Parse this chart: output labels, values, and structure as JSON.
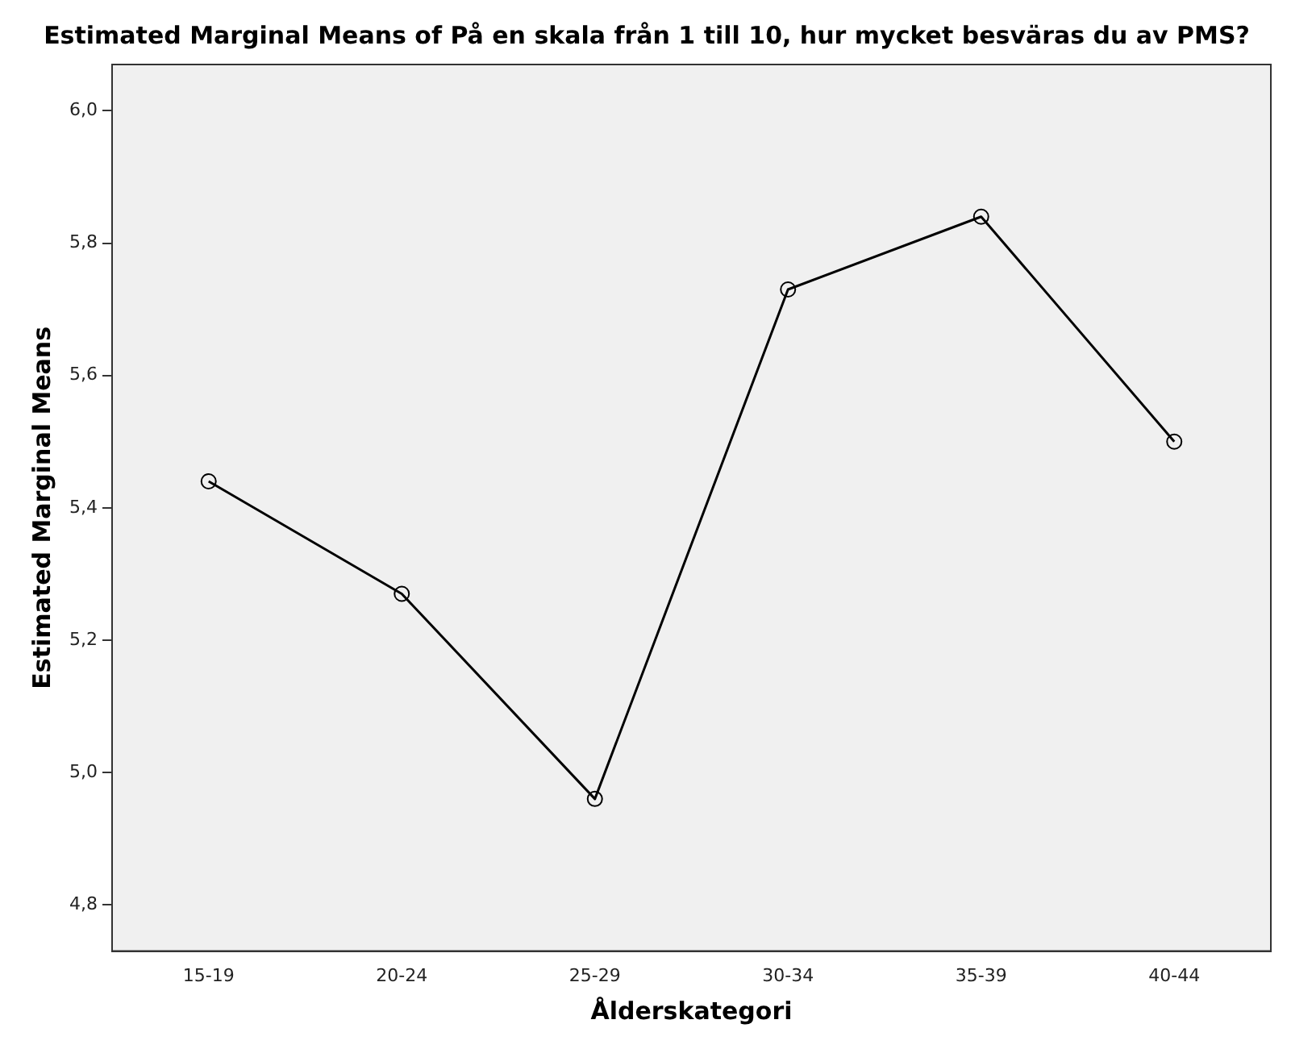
{
  "chart_data": {
    "type": "line",
    "title": "Estimated Marginal Means of På en skala från 1 till 10, hur mycket besväras du av PMS?",
    "xlabel": "Ålderskategori",
    "ylabel": "Estimated Marginal Means",
    "categories": [
      "15-19",
      "20-24",
      "25-29",
      "30-34",
      "35-39",
      "40-44"
    ],
    "series": [
      {
        "color": "#000000",
        "values": [
          5.44,
          5.27,
          4.96,
          5.73,
          5.84,
          5.5
        ]
      }
    ],
    "ylim": [
      4.73,
      6.07
    ],
    "yticks": [
      {
        "value": 4.8,
        "label": "4,8"
      },
      {
        "value": 5.0,
        "label": "5,0"
      },
      {
        "value": 5.2,
        "label": "5,2"
      },
      {
        "value": 5.4,
        "label": "5,4"
      },
      {
        "value": 5.6,
        "label": "5,6"
      },
      {
        "value": 5.8,
        "label": "5,8"
      },
      {
        "value": 6.0,
        "label": "6,0"
      }
    ],
    "grid": false,
    "legend": false,
    "marker": "circle",
    "line_style": "solid"
  }
}
